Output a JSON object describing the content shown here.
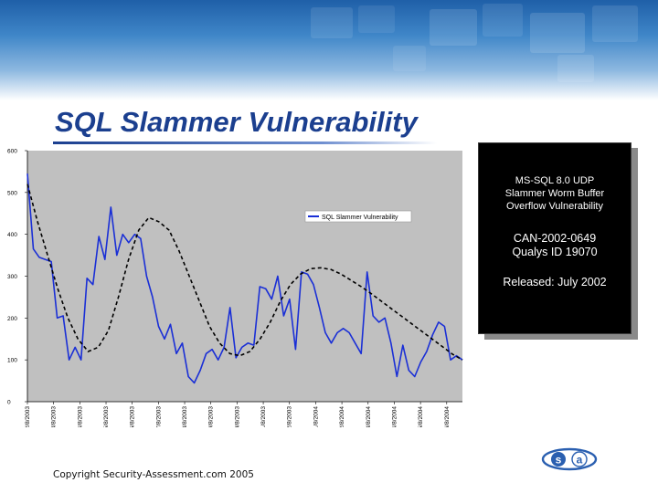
{
  "slide": {
    "title": "SQL Slammer Vulnerability",
    "copyright": "Copyright Security-Assessment.com 2005"
  },
  "info_box": {
    "line1": "MS-SQL 8.0 UDP",
    "line2": "Slammer Worm Buffer",
    "line3": "Overflow Vulnerability",
    "line4": "CAN-2002-0649",
    "line5": "Qualys ID 19070",
    "line6": "Released: July 2002"
  },
  "logo": {
    "letter1": "s",
    "letter2": "a"
  },
  "colors": {
    "title": "#1b3f8f",
    "series": "#1a2fd6",
    "trend": "#000000",
    "plot_bg": "#c0c0c0",
    "banner": "#2f6fb5"
  },
  "chart_data": {
    "type": "line",
    "ylim": [
      0,
      600
    ],
    "yticks": [
      "0",
      "100",
      "200",
      "300",
      "400",
      "500",
      "600"
    ],
    "grid": false,
    "legend": "top-right",
    "xticks": [
      "2/8/2003",
      "3/8/2003",
      "4/8/2003",
      "5/8/2003",
      "6/8/2003",
      "7/8/2003",
      "8/8/2003",
      "9/8/2003",
      "10/8/2003",
      "11/8/2003",
      "12/8/2003",
      "1/8/2004",
      "2/8/2004",
      "3/8/2004",
      "4/8/2004",
      "5/8/2004",
      "6/8/2004"
    ],
    "series": [
      {
        "name": "SQL Slammer Vulnerability",
        "values": [
          545,
          365,
          345,
          340,
          335,
          200,
          205,
          100,
          130,
          100,
          295,
          280,
          395,
          340,
          465,
          350,
          400,
          380,
          400,
          390,
          300,
          250,
          180,
          150,
          185,
          115,
          140,
          60,
          45,
          75,
          115,
          125,
          100,
          130,
          225,
          105,
          130,
          140,
          135,
          275,
          270,
          245,
          300,
          205,
          245,
          125,
          310,
          305,
          280,
          225,
          165,
          140,
          165,
          175,
          165,
          140,
          115,
          310,
          205,
          190,
          200,
          140,
          60,
          135,
          75,
          60,
          95,
          120,
          160,
          190,
          180,
          100,
          110,
          100
        ]
      },
      {
        "name": "",
        "values": [
          520,
          430,
          350,
          270,
          200,
          150,
          120,
          130,
          170,
          250,
          340,
          410,
          440,
          430,
          410,
          360,
          300,
          240,
          180,
          140,
          115,
          110,
          120,
          150,
          190,
          240,
          280,
          305,
          318,
          320,
          316,
          305,
          290,
          275,
          258,
          240,
          222,
          204,
          186,
          168,
          150,
          132,
          114,
          100
        ]
      }
    ]
  }
}
